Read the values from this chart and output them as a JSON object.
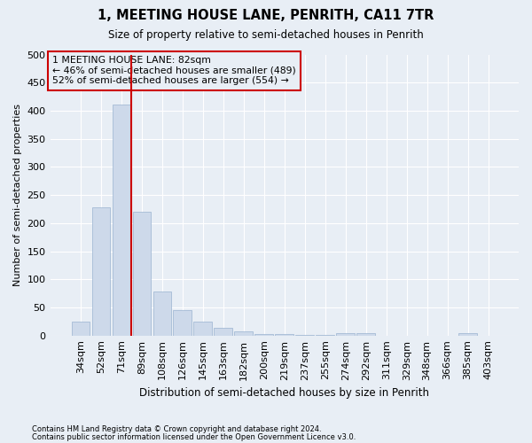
{
  "title1": "1, MEETING HOUSE LANE, PENRITH, CA11 7TR",
  "title2": "Size of property relative to semi-detached houses in Penrith",
  "xlabel": "Distribution of semi-detached houses by size in Penrith",
  "ylabel": "Number of semi-detached properties",
  "footnote1": "Contains HM Land Registry data © Crown copyright and database right 2024.",
  "footnote2": "Contains public sector information licensed under the Open Government Licence v3.0.",
  "annotation_line1": "1 MEETING HOUSE LANE: 82sqm",
  "annotation_line2": "← 46% of semi-detached houses are smaller (489)",
  "annotation_line3": "52% of semi-detached houses are larger (554) →",
  "bar_color": "#cdd9ea",
  "bar_edge_color": "#9ab3d0",
  "vline_color": "#cc0000",
  "annotation_box_color": "#cc0000",
  "background_color": "#e8eef5",
  "grid_color": "#ffffff",
  "categories": [
    "34sqm",
    "52sqm",
    "71sqm",
    "89sqm",
    "108sqm",
    "126sqm",
    "145sqm",
    "163sqm",
    "182sqm",
    "200sqm",
    "219sqm",
    "237sqm",
    "255sqm",
    "274sqm",
    "292sqm",
    "311sqm",
    "329sqm",
    "348sqm",
    "366sqm",
    "385sqm",
    "403sqm"
  ],
  "values": [
    25,
    228,
    411,
    220,
    78,
    45,
    25,
    13,
    8,
    3,
    2,
    1,
    1,
    5,
    5,
    0,
    0,
    0,
    0,
    4,
    0
  ],
  "vline_bin_index": 2,
  "ylim": [
    0,
    500
  ],
  "yticks": [
    0,
    50,
    100,
    150,
    200,
    250,
    300,
    350,
    400,
    450,
    500
  ]
}
